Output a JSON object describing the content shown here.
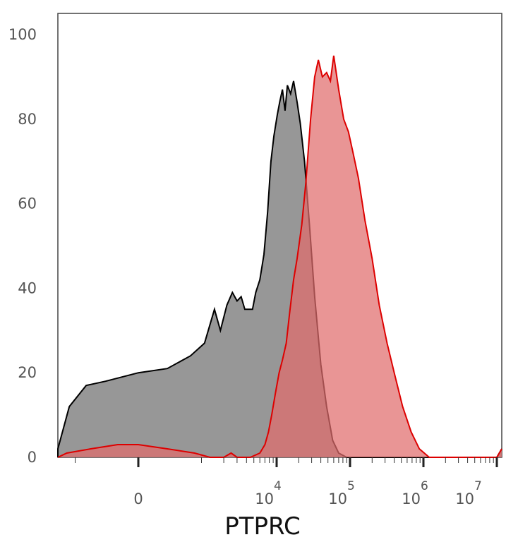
{
  "chart_data": {
    "type": "area",
    "xlabel": "PTPRC",
    "ylabel": "",
    "x_scale": "biexponential",
    "ylim": [
      0,
      105
    ],
    "y_ticks": [
      "0",
      "20",
      "40",
      "60",
      "80",
      "100"
    ],
    "x_ticks": [
      {
        "value": 0,
        "base": "0",
        "exp": ""
      },
      {
        "value": 10000,
        "base": "10",
        "exp": "4"
      },
      {
        "value": 100000,
        "base": "10",
        "exp": "5"
      },
      {
        "value": 1000000,
        "base": "10",
        "exp": "6"
      },
      {
        "value": 10000000,
        "base": "10",
        "exp": "7"
      }
    ],
    "grid": false,
    "series": [
      {
        "color": "#000000",
        "fill": "#808080",
        "points": [
          [
            -2500,
            0
          ],
          [
            -1800,
            2
          ],
          [
            -1200,
            12
          ],
          [
            -700,
            17
          ],
          [
            -350,
            18
          ],
          [
            0,
            20
          ],
          [
            300,
            21
          ],
          [
            700,
            24
          ],
          [
            1100,
            27
          ],
          [
            1500,
            35
          ],
          [
            1800,
            30
          ],
          [
            2200,
            36
          ],
          [
            2600,
            39
          ],
          [
            3000,
            37
          ],
          [
            3400,
            38
          ],
          [
            3800,
            35
          ],
          [
            4200,
            35
          ],
          [
            4800,
            35
          ],
          [
            5300,
            39
          ],
          [
            6000,
            42
          ],
          [
            6800,
            48
          ],
          [
            7600,
            58
          ],
          [
            8400,
            70
          ],
          [
            9200,
            76
          ],
          [
            10200,
            81
          ],
          [
            11000,
            84
          ],
          [
            12000,
            87
          ],
          [
            13000,
            82
          ],
          [
            14000,
            88
          ],
          [
            15500,
            86
          ],
          [
            17000,
            89
          ],
          [
            19000,
            84
          ],
          [
            21000,
            79
          ],
          [
            24000,
            70
          ],
          [
            28000,
            55
          ],
          [
            33000,
            38
          ],
          [
            40000,
            22
          ],
          [
            48000,
            12
          ],
          [
            58000,
            4
          ],
          [
            70000,
            1
          ],
          [
            90000,
            0
          ],
          [
            10000000,
            0
          ],
          [
            12000000,
            2
          ]
        ]
      },
      {
        "color": "#dd0000",
        "fill": "#e06c6c",
        "points": [
          [
            -2500,
            0
          ],
          [
            -1300,
            1
          ],
          [
            -600,
            2
          ],
          [
            -200,
            3
          ],
          [
            0,
            3
          ],
          [
            300,
            2
          ],
          [
            800,
            1
          ],
          [
            1300,
            0
          ],
          [
            2000,
            0
          ],
          [
            2500,
            1
          ],
          [
            3000,
            0
          ],
          [
            4500,
            0
          ],
          [
            6000,
            1
          ],
          [
            7000,
            3
          ],
          [
            7800,
            6
          ],
          [
            8600,
            10
          ],
          [
            9600,
            15
          ],
          [
            10800,
            20
          ],
          [
            12000,
            23
          ],
          [
            13500,
            27
          ],
          [
            15000,
            34
          ],
          [
            17000,
            42
          ],
          [
            19000,
            47
          ],
          [
            22000,
            55
          ],
          [
            25000,
            65
          ],
          [
            29000,
            80
          ],
          [
            33000,
            90
          ],
          [
            37000,
            94
          ],
          [
            42000,
            90
          ],
          [
            48000,
            91
          ],
          [
            54000,
            89
          ],
          [
            60000,
            95
          ],
          [
            70000,
            87
          ],
          [
            82000,
            80
          ],
          [
            95000,
            77
          ],
          [
            110000,
            72
          ],
          [
            130000,
            66
          ],
          [
            160000,
            56
          ],
          [
            200000,
            47
          ],
          [
            250000,
            36
          ],
          [
            320000,
            27
          ],
          [
            400000,
            20
          ],
          [
            520000,
            12
          ],
          [
            680000,
            6
          ],
          [
            880000,
            2
          ],
          [
            1200000,
            0
          ],
          [
            10000000,
            0
          ],
          [
            12000000,
            2
          ]
        ]
      }
    ]
  }
}
